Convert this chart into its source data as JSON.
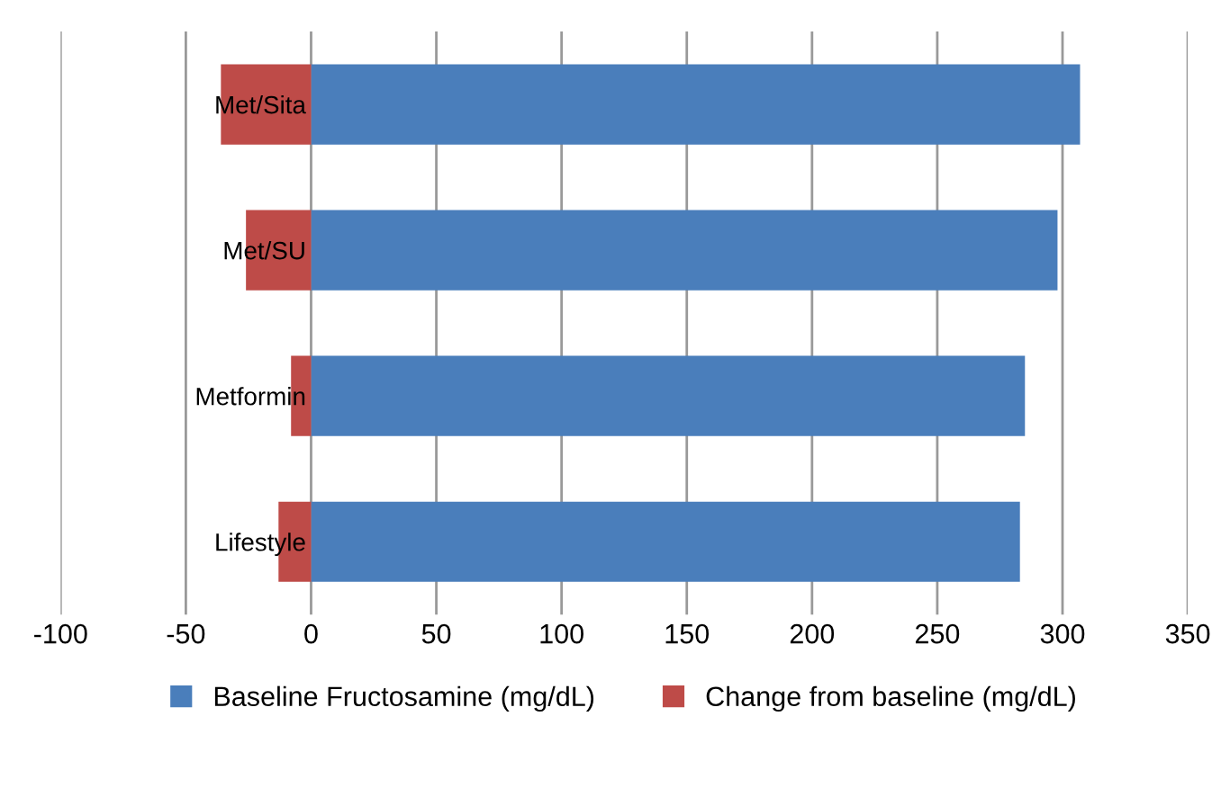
{
  "chart_data": {
    "type": "bar",
    "orientation": "horizontal",
    "stacked": true,
    "categories": [
      "Met/Sita",
      "Met/SU",
      "Metformin",
      "Lifestyle"
    ],
    "series": [
      {
        "name": "Baseline Fructosamine (mg/dL)",
        "color": "#4a7ebb",
        "values": [
          307,
          298,
          285,
          283
        ]
      },
      {
        "name": "Change from baseline (mg/dL)",
        "color": "#be4b48",
        "values": [
          -36,
          -26,
          -8,
          -13
        ]
      }
    ],
    "xlim": [
      -100,
      350
    ],
    "xticks": [
      -100,
      -50,
      0,
      50,
      100,
      150,
      200,
      250,
      300,
      350
    ],
    "grid": "x",
    "legend": "bottom"
  }
}
